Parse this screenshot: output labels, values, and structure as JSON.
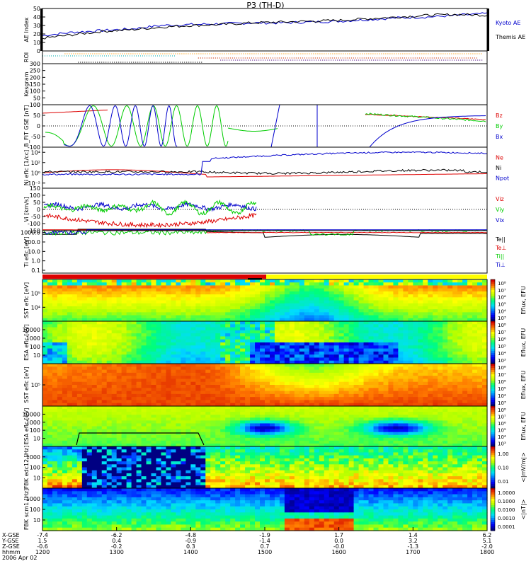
{
  "figure_title": "P3 (TH-D)",
  "chart_data": [
    {
      "type": "line",
      "ylabel": "AE Index",
      "ylim": [
        0,
        50
      ],
      "yticks": [
        0,
        10,
        20,
        30,
        40,
        50
      ],
      "series": [
        {
          "name": "Kyoto AE",
          "color": "#0000cc",
          "values": [
            18,
            22,
            24,
            26,
            30,
            31,
            32,
            33,
            33,
            34,
            35,
            37,
            39,
            40,
            42,
            44
          ]
        },
        {
          "name": "Themis AE",
          "color": "#000000",
          "values": [
            15,
            19,
            23,
            25,
            28,
            30,
            31,
            33,
            34,
            35,
            36,
            38,
            40,
            42,
            43,
            42
          ]
        }
      ]
    },
    {
      "type": "bars",
      "ylabel": "ROI"
    },
    {
      "type": "line",
      "ylabel": "Kesgram",
      "ylim": [
        0,
        300
      ],
      "yticks": [
        0,
        50,
        100,
        150,
        200,
        250,
        300
      ],
      "series": []
    },
    {
      "type": "line",
      "ylabel": "B_FIT GSE [nT]",
      "ylim": [
        -100,
        100
      ],
      "yticks": [
        -100,
        -50,
        0,
        50,
        100
      ],
      "series": [
        {
          "name": "Bz",
          "color": "#dd0000"
        },
        {
          "name": "By",
          "color": "#00cc00"
        },
        {
          "name": "Bx",
          "color": "#0000cc"
        }
      ]
    },
    {
      "type": "line",
      "ylabel": "Ni eflc [1/cc]",
      "ytick_labels": [
        "10⁻²",
        "10⁰",
        "10²",
        "10⁴"
      ],
      "series": [
        {
          "name": "Ne",
          "color": "#dd0000"
        },
        {
          "name": "Ni",
          "color": "#000000"
        },
        {
          "name": "Npot",
          "color": "#0000cc"
        }
      ]
    },
    {
      "type": "line",
      "ylabel": "Vi [km/s]",
      "ylim": [
        -150,
        150
      ],
      "yticks": [
        -150,
        -100,
        -50,
        0,
        50,
        100,
        150
      ],
      "series": [
        {
          "name": "Viz",
          "color": "#dd0000"
        },
        {
          "name": "Viy",
          "color": "#00cc00"
        },
        {
          "name": "Vix",
          "color": "#0000cc"
        }
      ]
    },
    {
      "type": "line",
      "ylabel": "Ti eflc [eV]",
      "ytick_labels": [
        "1000.0",
        "100.0",
        "10.0",
        "1.0",
        "0.1"
      ],
      "series": [
        {
          "name": "Te||",
          "color": "#000000"
        },
        {
          "name": "Te⊥",
          "color": "#dd0000"
        },
        {
          "name": "Ti||",
          "color": "#00cc00"
        },
        {
          "name": "Ti⊥",
          "color": "#0000cc"
        }
      ]
    },
    {
      "type": "heatmap",
      "ylabel": "SST eflc [eV]",
      "ytick_labels": [
        "10⁵",
        "10⁴"
      ],
      "colorbar_label": "Eflux, EFU",
      "colorbar_ticks": [
        "10⁸",
        "10⁷",
        "10⁶",
        "10⁵",
        "10⁴",
        "10³"
      ]
    },
    {
      "type": "heatmap",
      "ylabel": "ESA eflc [eV]",
      "ytick_labels": [
        "10000",
        "1000",
        "100",
        "10"
      ],
      "colorbar_label": "Eflux, EFU",
      "colorbar_ticks": [
        "10⁸",
        "10⁷",
        "10⁶",
        "10⁵",
        "10⁴",
        "10³"
      ]
    },
    {
      "type": "heatmap",
      "ylabel": "SST eflc [eV]",
      "ytick_labels": [
        "10⁵"
      ],
      "colorbar_label": "Eflux, EFU",
      "colorbar_ticks": [
        "10⁸",
        "10⁷",
        "10⁶",
        "10⁵",
        "10⁴",
        "10³"
      ]
    },
    {
      "type": "heatmap",
      "ylabel": "ESA eflc [eV]",
      "ytick_labels": [
        "10000",
        "1000",
        "100",
        "10"
      ],
      "colorbar_label": "Eflux, EFU",
      "colorbar_ticks": [
        "10⁸",
        "10⁷",
        "10⁶",
        "10⁵",
        "10⁴",
        "10³"
      ]
    },
    {
      "type": "heatmap",
      "ylabel": "FBK edc12 [Hz]",
      "ytick_labels": [
        "1000",
        "100",
        "10"
      ],
      "colorbar_label": "<|mV/m|>",
      "colorbar_ticks": [
        "1.00",
        "0.10",
        "0.01"
      ]
    },
    {
      "type": "heatmap",
      "ylabel": "FBK scm1 [Hz]",
      "ytick_labels": [
        "1000",
        "100",
        "10"
      ],
      "colorbar_label": "<|nT|>",
      "colorbar_ticks": [
        "1.0000",
        "0.1000",
        "0.0100",
        "0.0010",
        "0.0001"
      ]
    }
  ],
  "x_axis": {
    "row_labels": [
      "X-GSE",
      "Y-GSE",
      "Z-GSE",
      "hhmm",
      "2006 Apr 02"
    ],
    "ticks": [
      {
        "vals": [
          "-7.4",
          "1.5",
          "-0.6",
          "1200"
        ]
      },
      {
        "vals": [
          "-6.2",
          "0.4",
          "-0.2",
          "1300"
        ]
      },
      {
        "vals": [
          "-4.8",
          "-0.9",
          "0.3",
          "1400"
        ]
      },
      {
        "vals": [
          "-1.9",
          "-1.4",
          "0.7",
          "1500"
        ]
      },
      {
        "vals": [
          "1.7",
          "0.0",
          "-0.0",
          "1600"
        ]
      },
      {
        "vals": [
          "1.4",
          "3.2",
          "-1.3",
          "1700"
        ]
      },
      {
        "vals": [
          "6.2",
          "5.1",
          "-2.0",
          "1800"
        ]
      }
    ]
  }
}
